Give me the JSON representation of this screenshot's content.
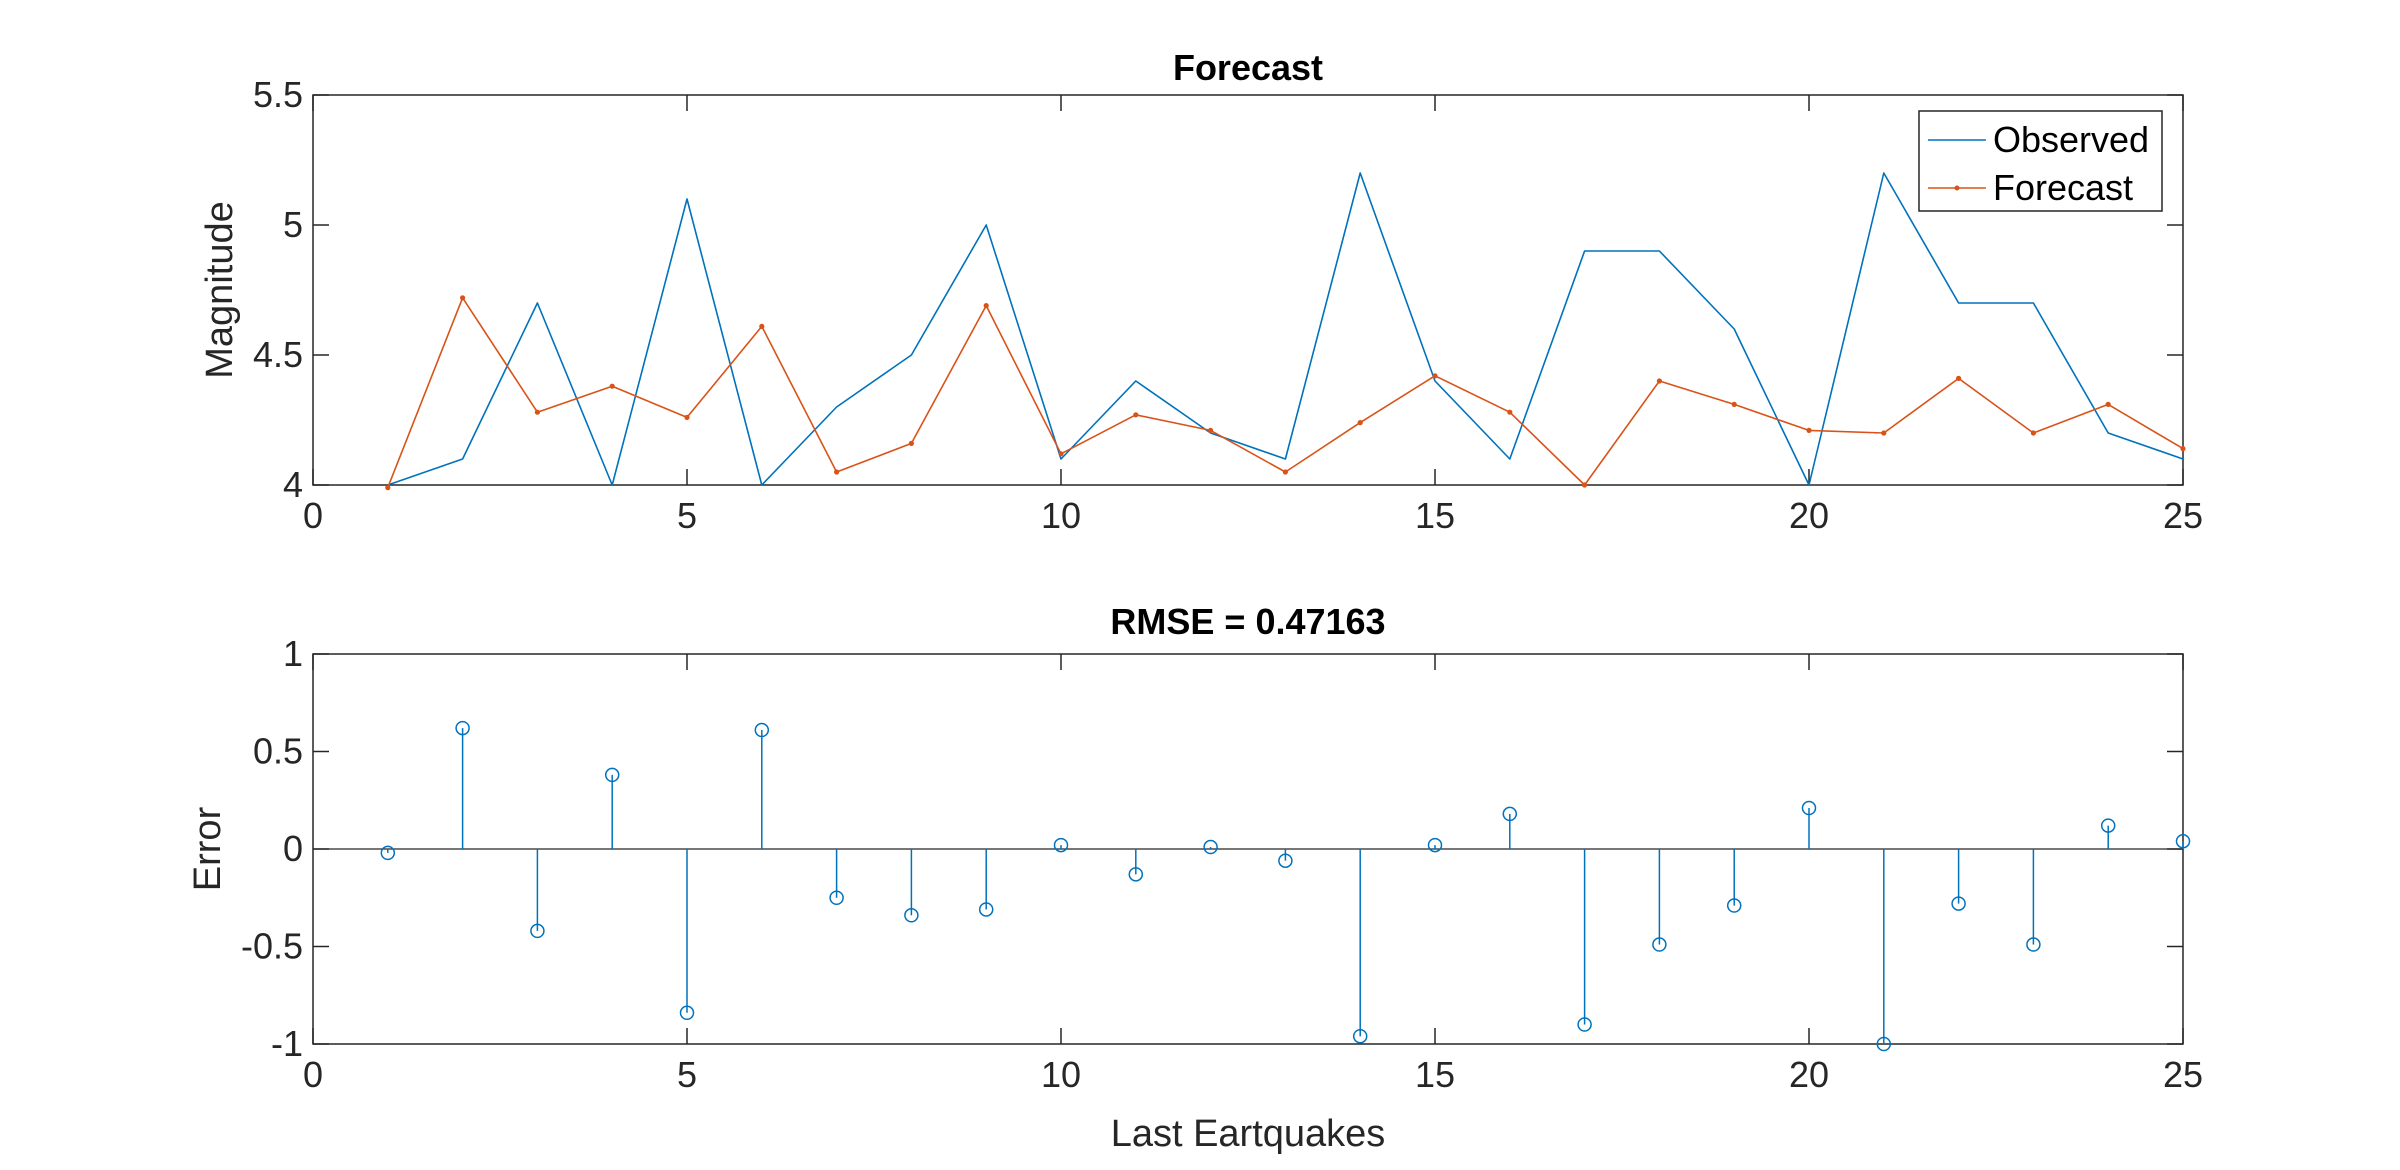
{
  "chart_data": [
    {
      "type": "line",
      "title": "Forecast",
      "xlabel": "",
      "ylabel": "Magnitude",
      "xlim": [
        0,
        25
      ],
      "ylim": [
        4,
        5.5
      ],
      "xticks": [
        0,
        5,
        10,
        15,
        20,
        25
      ],
      "yticks": [
        4,
        4.5,
        5,
        5.5
      ],
      "xtick_labels": [
        "0",
        "5",
        "10",
        "15",
        "20",
        "25"
      ],
      "ytick_labels": [
        "4",
        "4.5",
        "5",
        "5.5"
      ],
      "grid": false,
      "legend_position": "top-right",
      "x": [
        1,
        2,
        3,
        4,
        5,
        6,
        7,
        8,
        9,
        10,
        11,
        12,
        13,
        14,
        15,
        16,
        17,
        18,
        19,
        20,
        21,
        22,
        23,
        24,
        25
      ],
      "series": [
        {
          "name": "Observed",
          "color": "#0072BD",
          "marker": "none",
          "values": [
            4.0,
            4.1,
            4.7,
            4.0,
            5.1,
            4.0,
            4.3,
            4.5,
            5.0,
            4.1,
            4.4,
            4.2,
            4.1,
            5.2,
            4.4,
            4.1,
            4.9,
            4.9,
            4.6,
            4.0,
            5.2,
            4.7,
            4.7,
            4.2,
            4.1
          ]
        },
        {
          "name": "Forecast",
          "color": "#D95319",
          "marker": "dot",
          "values": [
            3.99,
            4.72,
            4.28,
            4.38,
            4.26,
            4.61,
            4.05,
            4.16,
            4.69,
            4.12,
            4.27,
            4.21,
            4.05,
            4.24,
            4.42,
            4.28,
            4.0,
            4.4,
            4.31,
            4.21,
            4.2,
            4.41,
            4.2,
            4.31,
            4.14
          ]
        }
      ]
    },
    {
      "type": "stem",
      "title": "RMSE = 0.47163",
      "xlabel": "Last Eartquakes",
      "ylabel": "Error",
      "xlim": [
        0,
        25
      ],
      "ylim": [
        -1,
        1
      ],
      "xticks": [
        0,
        5,
        10,
        15,
        20,
        25
      ],
      "yticks": [
        -1,
        -0.5,
        0,
        0.5,
        1
      ],
      "xtick_labels": [
        "0",
        "5",
        "10",
        "15",
        "20",
        "25"
      ],
      "ytick_labels": [
        "-1",
        "-0.5",
        "0",
        "0.5",
        "1"
      ],
      "grid": false,
      "baseline": 0,
      "color": "#0072BD",
      "marker": "circle",
      "x": [
        1,
        2,
        3,
        4,
        5,
        6,
        7,
        8,
        9,
        10,
        11,
        12,
        13,
        14,
        15,
        16,
        17,
        18,
        19,
        20,
        21,
        22,
        23,
        24,
        25
      ],
      "values": [
        -0.02,
        0.62,
        -0.42,
        0.38,
        -0.84,
        0.61,
        -0.25,
        -0.34,
        -0.31,
        0.02,
        -0.13,
        0.01,
        -0.06,
        -0.96,
        0.02,
        0.18,
        -0.9,
        -0.49,
        -0.29,
        0.21,
        -1.0,
        -0.28,
        -0.49,
        0.12,
        0.04
      ]
    }
  ]
}
